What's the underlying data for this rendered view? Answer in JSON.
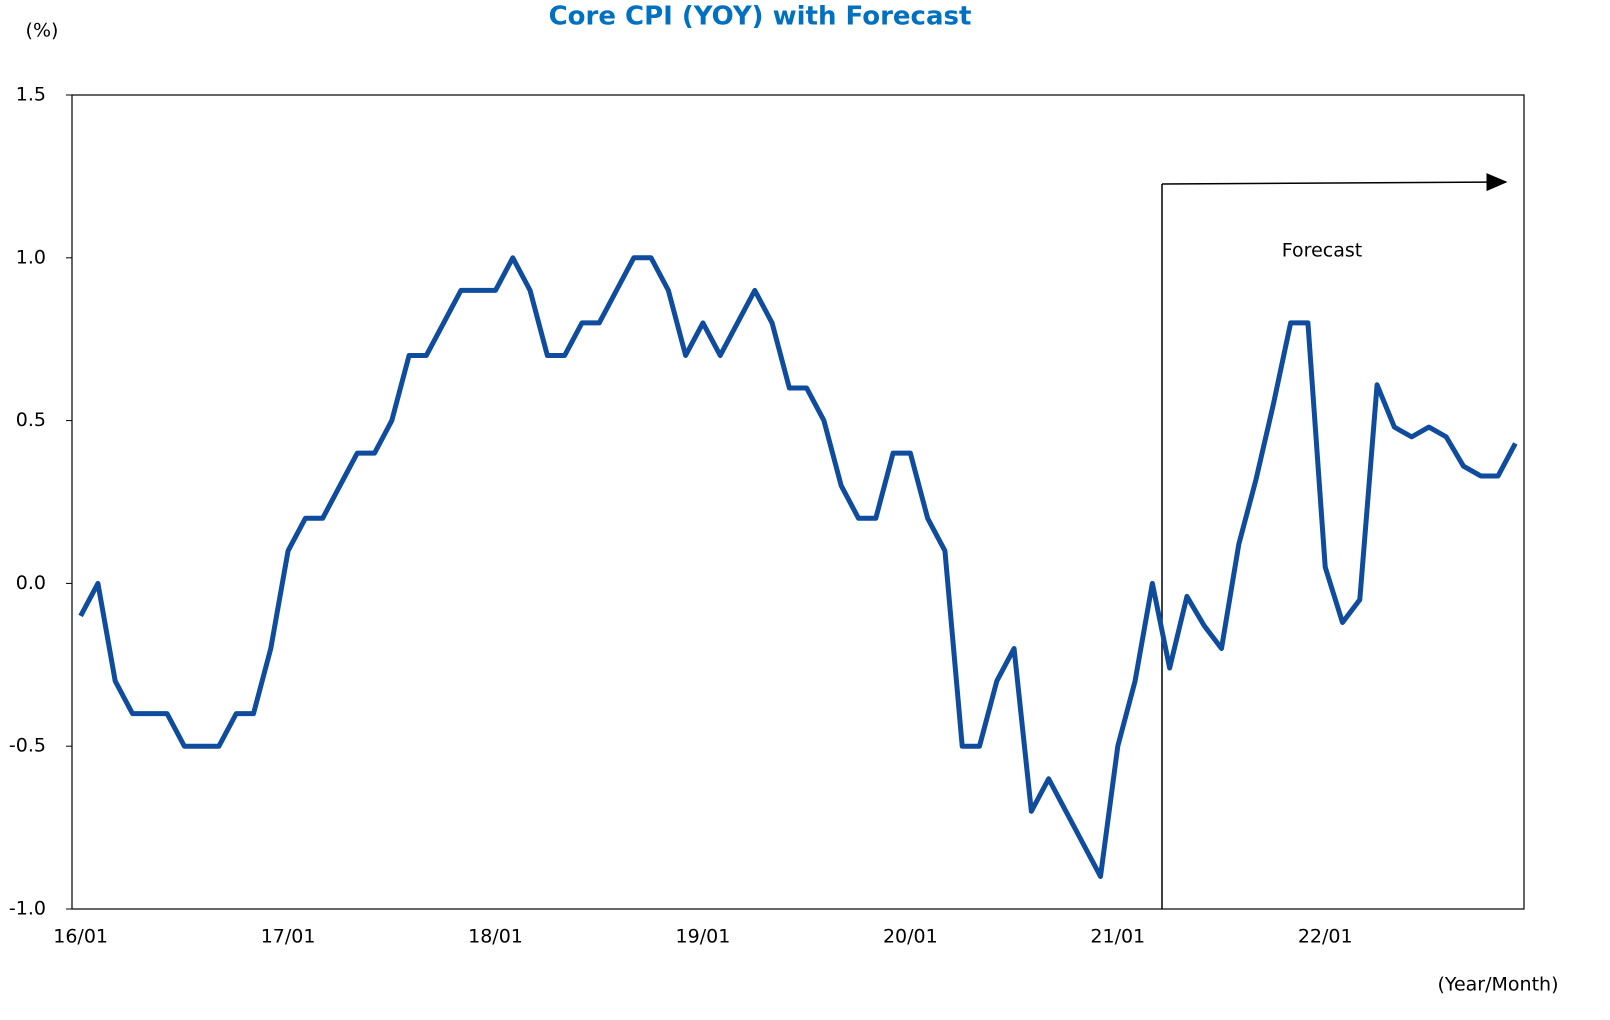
{
  "chart_data": {
    "type": "line",
    "title": "Core CPI (YOY)  with Forecast",
    "y_label": "(%)",
    "x_label": "(Year/Month)",
    "annotation": "Forecast",
    "categories": [
      "16/01",
      null,
      null,
      null,
      null,
      null,
      null,
      null,
      null,
      null,
      null,
      null,
      "17/01",
      null,
      null,
      null,
      null,
      null,
      null,
      null,
      null,
      null,
      null,
      null,
      "18/01",
      null,
      null,
      null,
      null,
      null,
      null,
      null,
      null,
      null,
      null,
      null,
      "19/01",
      null,
      null,
      null,
      null,
      null,
      null,
      null,
      null,
      null,
      null,
      null,
      "20/01",
      null,
      null,
      null,
      null,
      null,
      null,
      null,
      null,
      null,
      null,
      null,
      "21/01",
      null,
      null,
      null,
      null,
      null,
      null,
      null,
      null,
      null,
      null,
      null,
      "22/01",
      null,
      null,
      null,
      null,
      null,
      null,
      null,
      null,
      null,
      null,
      null
    ],
    "series": [
      {
        "name": "Core CPI",
        "color": "#0f4c9e",
        "values": [
          -0.1,
          0.0,
          -0.3,
          -0.4,
          -0.4,
          -0.4,
          -0.5,
          -0.5,
          -0.5,
          -0.4,
          -0.4,
          -0.2,
          0.1,
          0.2,
          0.2,
          0.3,
          0.4,
          0.4,
          0.5,
          0.7,
          0.7,
          0.8,
          0.9,
          0.9,
          0.9,
          1.0,
          0.9,
          0.7,
          0.7,
          0.8,
          0.8,
          0.9,
          1.0,
          1.0,
          0.9,
          0.7,
          0.8,
          0.7,
          0.8,
          0.9,
          0.8,
          0.6,
          0.6,
          0.5,
          0.3,
          0.2,
          0.2,
          0.4,
          0.4,
          0.2,
          0.1,
          -0.5,
          -0.5,
          -0.3,
          -0.2,
          -0.7,
          -0.6,
          -0.7,
          -0.8,
          -0.9,
          -0.5,
          -0.3,
          0.0,
          -0.26,
          -0.04,
          -0.13,
          -0.2,
          0.12,
          0.32,
          0.55,
          0.8,
          0.8,
          0.05,
          -0.12,
          -0.05,
          0.61,
          0.48,
          0.45,
          0.48,
          0.45,
          0.36,
          0.33,
          0.33,
          0.43
        ]
      }
    ],
    "ylim": [
      -1.0,
      1.5
    ],
    "yticks": [
      {
        "value": -1.0,
        "label": "-1.0"
      },
      -0.5,
      {
        "value": 0.0,
        "label": "0.0"
      },
      0.5,
      {
        "value": 1.0,
        "label": "1.0"
      },
      1.5
    ],
    "grid": false
  }
}
